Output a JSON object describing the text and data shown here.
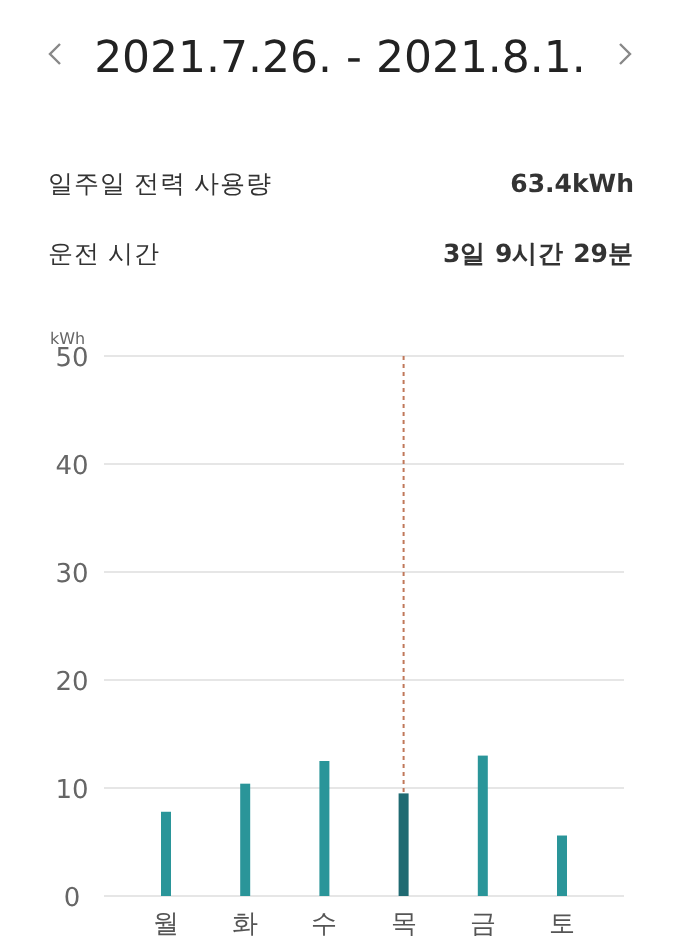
{
  "chart_data": {
    "type": "bar",
    "title": "2021.7.26. - 2021.8.1.",
    "annotations": [
      "일주일 전력 사용량",
      "63.4kWh",
      "운전 시간",
      "3일 9시간 29분"
    ],
    "ylabel": "kWh",
    "categories": [
      "월",
      "화",
      "수",
      "목",
      "금",
      "토"
    ],
    "values": [
      7.8,
      10.4,
      12.5,
      9.5,
      13.0,
      5.6
    ],
    "colors": [
      "#2a9599",
      "#2a9599",
      "#2a9599",
      "#1f6a72",
      "#2a9599",
      "#2a9599"
    ],
    "ylim": [
      0,
      50
    ],
    "yticks": [
      0,
      10,
      20,
      30,
      40,
      50
    ],
    "grid": "y",
    "ref_lines": [
      {
        "axis": "x",
        "value": "목",
        "color": "#c0785a",
        "line_style": "dotted"
      }
    ]
  }
}
